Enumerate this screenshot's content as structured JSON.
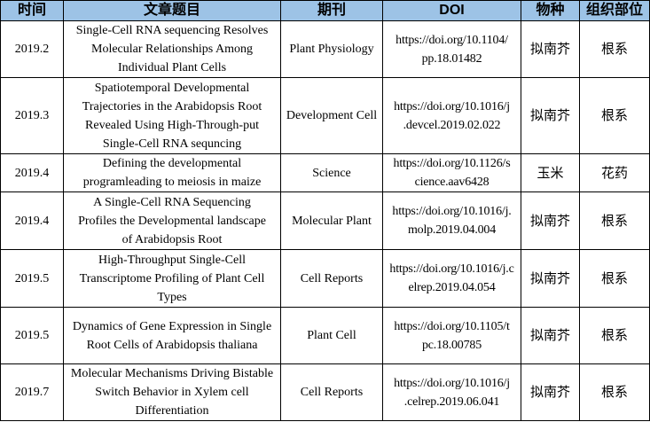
{
  "headers": [
    "时间",
    "文章题目",
    "期刊",
    "DOI",
    "物种",
    "组织部位"
  ],
  "rows": [
    {
      "date": "2019.2",
      "title": "Single-Cell RNA sequencing Resolves\nMolecular Relationships Among\nIndividual Plant Cells",
      "journal": "Plant Physiology",
      "doi": "https://doi.org/10.1104/\npp.18.01482",
      "species": "拟南芥",
      "tissue": "根系"
    },
    {
      "date": "2019.3",
      "title": "Spatiotemporal Developmental\nTrajectories in the Arabidopsis Root\nRevealed Using High-Through-put\nSingle-Cell RNA sequncing",
      "journal": "Development Cell",
      "doi": "https://doi.org/10.1016/j\n.devcel.2019.02.022",
      "species": "拟南芥",
      "tissue": "根系"
    },
    {
      "date": "2019.4",
      "title": "Defining the developmental\nprogramleading to meiosis in maize",
      "journal": "Science",
      "doi": "https://doi.org/10.1126/s\ncience.aav6428",
      "species": "玉米",
      "tissue": "花药"
    },
    {
      "date": "2019.4",
      "title": "A Single-Cell RNA Sequencing\nProfiles the Developmental landscape\nof Arabidopsis Root",
      "journal": "Molecular Plant",
      "doi": "https://doi.org/10.1016/j.\nmolp.2019.04.004",
      "species": "拟南芥",
      "tissue": "根系"
    },
    {
      "date": "2019.5",
      "title": "High-Throughput Single-Cell\nTranscriptome Profiling of Plant Cell\nTypes",
      "journal": "Cell Reports",
      "doi": "https://doi.org/10.1016/j.c\nelrep.2019.04.054",
      "species": "拟南芥",
      "tissue": "根系"
    },
    {
      "date": "2019.5",
      "title": "Dynamics of Gene Expression in Single\nRoot Cells of Arabidopsis thaliana",
      "journal": "Plant Cell",
      "doi": "https://doi.org/10.1105/t\npc.18.00785",
      "species": "拟南芥",
      "tissue": "根系"
    },
    {
      "date": "2019.7",
      "title": "Molecular Mechanisms Driving Bistable\nSwitch Behavior in Xylem cell\nDifferentiation",
      "journal": "Cell Reports",
      "doi": "https://doi.org/10.1016/j\n.celrep.2019.06.041",
      "species": "拟南芥",
      "tissue": "根系"
    }
  ]
}
